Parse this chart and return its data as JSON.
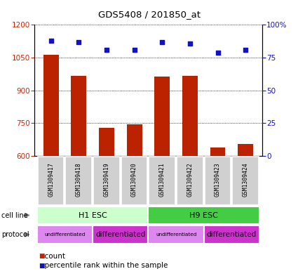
{
  "title": "GDS5408 / 201850_at",
  "samples": [
    "GSM1309417",
    "GSM1309418",
    "GSM1309419",
    "GSM1309420",
    "GSM1309421",
    "GSM1309422",
    "GSM1309423",
    "GSM1309424"
  ],
  "counts": [
    1063,
    968,
    730,
    745,
    963,
    968,
    640,
    655
  ],
  "percentiles": [
    88,
    87,
    81,
    81,
    87,
    86,
    79,
    81
  ],
  "ylim_left": [
    600,
    1200
  ],
  "ylim_right": [
    0,
    100
  ],
  "yticks_left": [
    600,
    750,
    900,
    1050,
    1200
  ],
  "yticks_right": [
    0,
    25,
    50,
    75,
    100
  ],
  "ytick_labels_right": [
    "0",
    "25",
    "50",
    "75",
    "100%"
  ],
  "bar_color": "#bb2200",
  "dot_color": "#1111cc",
  "bar_width": 0.55,
  "cell_line_h1_color": "#ccffcc",
  "cell_line_h9_color": "#44cc44",
  "undiff_color": "#dd88ee",
  "diff_color": "#cc33cc",
  "legend_count_color": "#cc2200",
  "legend_dot_color": "#1111cc",
  "tick_color_left": "#cc2200",
  "tick_color_right": "#1111cc",
  "gray_box_color": "#d0d0d0"
}
